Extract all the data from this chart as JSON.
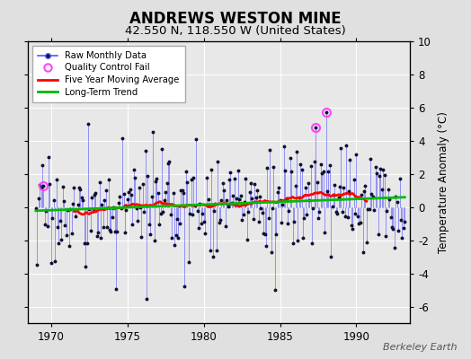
{
  "title": "ANDREWS WESTON MINE",
  "subtitle": "42.550 N, 118.550 W (United States)",
  "watermark": "Berkeley Earth",
  "ylabel": "Temperature Anomaly (°C)",
  "xlim": [
    1968.5,
    1993.5
  ],
  "ylim": [
    -7,
    10
  ],
  "yticks": [
    -6,
    -4,
    -2,
    0,
    2,
    4,
    6,
    8,
    10
  ],
  "xticks": [
    1970,
    1975,
    1980,
    1985,
    1990
  ],
  "bg_color": "#e0e0e0",
  "plot_bg_color": "#e8e8e8",
  "raw_color": "#5555ff",
  "raw_line_alpha": 0.75,
  "moving_avg_color": "#ff0000",
  "trend_color": "#00bb00",
  "qc_color": "#ff44ff",
  "title_fontsize": 12,
  "subtitle_fontsize": 9.5,
  "axis_fontsize": 8.5,
  "tick_fontsize": 8.5
}
